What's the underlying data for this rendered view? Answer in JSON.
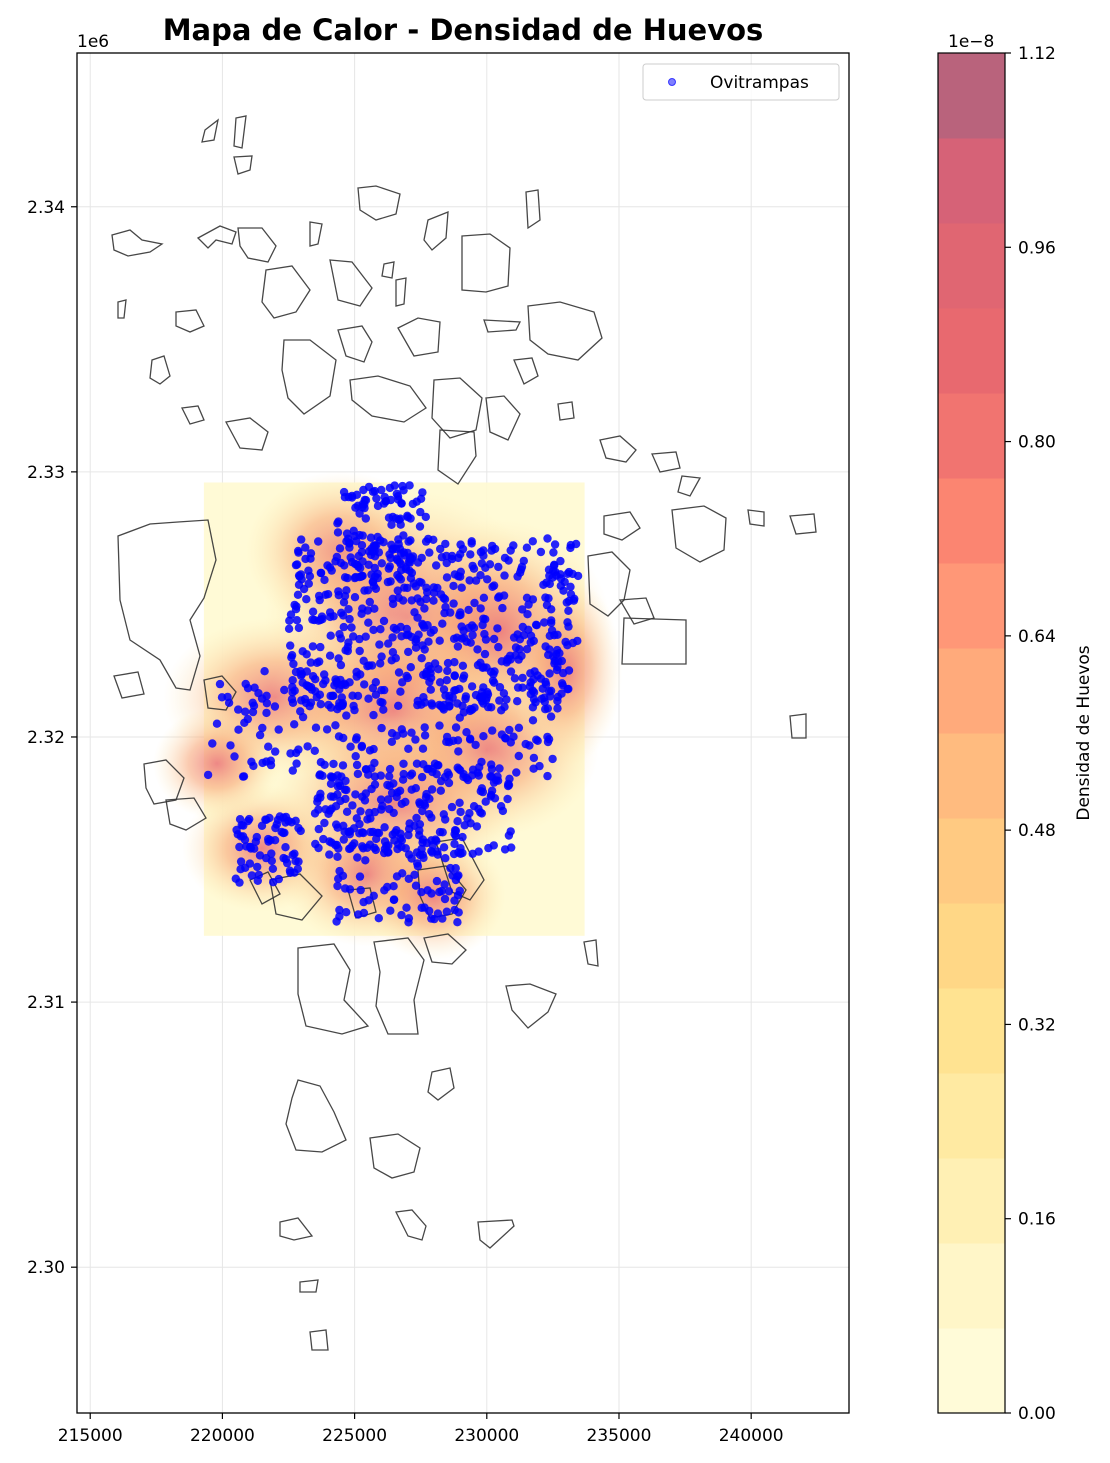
{
  "chart_data": {
    "type": "map",
    "title": "Mapa de Calor - Densidad de Huevos",
    "x_ticks": [
      "215000",
      "220000",
      "225000",
      "230000",
      "235000",
      "240000"
    ],
    "x_tick_values": [
      215000,
      220000,
      225000,
      230000,
      235000,
      240000
    ],
    "y_ticks": [
      "2.30",
      "2.31",
      "2.32",
      "2.33",
      "2.34"
    ],
    "y_tick_values": [
      2300000,
      2310000,
      2320000,
      2330000,
      2340000
    ],
    "y_offset_label": "1e6",
    "xlim": [
      214500,
      243700
    ],
    "ylim": [
      2294500,
      2345800
    ],
    "grid": true,
    "legend": {
      "position": "upper right",
      "entries": [
        {
          "label": "Ovitrampas",
          "color": "#0000ff"
        }
      ]
    },
    "colorbar": {
      "label": "Densidad de Huevos",
      "offset_label": "1e−8",
      "ticks": [
        "0.00",
        "0.16",
        "0.32",
        "0.48",
        "0.64",
        "0.80",
        "0.96",
        "1.12"
      ],
      "range": [
        0,
        1.12
      ],
      "colormap": "YlOrRd"
    },
    "heatmap_extent": {
      "x": [
        219300,
        233700
      ],
      "y": [
        2312500,
        2329600
      ]
    },
    "point_cloud": {
      "series": "Ovitrampas",
      "color": "#0000ff",
      "clusters": [
        {
          "x": [
            224300,
            227800
          ],
          "y": [
            2325500,
            2329500
          ]
        },
        {
          "x": [
            222500,
            233500
          ],
          "y": [
            2321000,
            2327500
          ]
        },
        {
          "x": [
            219400,
            232500
          ],
          "y": [
            2318500,
            2322500
          ]
        },
        {
          "x": [
            223500,
            231000
          ],
          "y": [
            2315500,
            2319000
          ]
        },
        {
          "x": [
            220500,
            223000
          ],
          "y": [
            2314500,
            2317000
          ]
        },
        {
          "x": [
            224000,
            229000
          ],
          "y": [
            2313000,
            2316500
          ]
        }
      ]
    }
  },
  "colors": {
    "points": "#0000ff",
    "outline": "#333333",
    "grid": "#e6e6e6"
  }
}
